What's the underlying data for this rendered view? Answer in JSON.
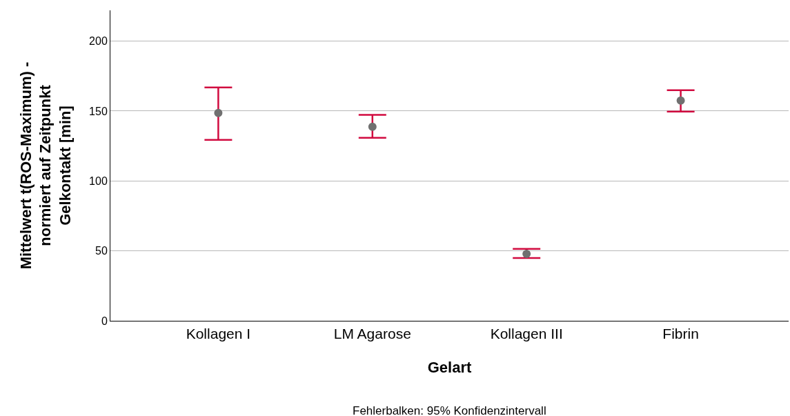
{
  "chart_data": {
    "type": "scatter",
    "xlabel": "Gelart",
    "ylabel": "Mittelwert t(ROS-Maximum) -\nnormiert auf Zeitpunkt\nGelkontakt [min]",
    "categories": [
      "Kollagen I",
      "LM Agarose",
      "Kollagen III",
      "Fibrin"
    ],
    "series": [
      {
        "color": "#707070",
        "values": [
          148.6,
          138.8,
          47.9,
          157.5
        ],
        "errors": [
          [
            129.4,
            166.9
          ],
          [
            130.9,
            147.2
          ],
          [
            44.9,
            51.4
          ],
          [
            149.6,
            164.9
          ]
        ]
      }
    ],
    "ylim": [
      0,
      222
    ],
    "yticks": [
      0,
      50,
      100,
      150,
      200
    ],
    "grid": "y",
    "marker": "circle",
    "annotations": [
      "Fehlerbalken: 95% Konfidenzintervall"
    ]
  }
}
